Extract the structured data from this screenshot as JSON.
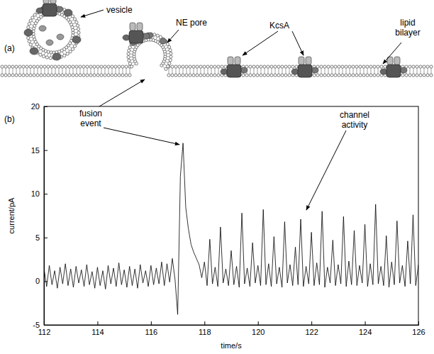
{
  "chart_data": {
    "type": "line",
    "title": "(b)",
    "x_label": "time/s",
    "y_label": "current/pA",
    "color": "#000000",
    "grid": false,
    "xlim": [
      112,
      126
    ],
    "ylim": [
      -5,
      20
    ],
    "xticks": [
      112,
      114,
      116,
      118,
      120,
      122,
      124,
      126
    ],
    "yticks": [
      -5,
      0,
      5,
      10,
      15,
      20
    ],
    "annotations": [
      "fusion event",
      "channel activity"
    ],
    "x": [
      112,
      112.1,
      112.2,
      112.3,
      112.4,
      112.5,
      112.6,
      112.7,
      112.8,
      112.9,
      113,
      113.1,
      113.2,
      113.3,
      113.4,
      113.5,
      113.6,
      113.7,
      113.8,
      113.9,
      114,
      114.1,
      114.2,
      114.3,
      114.4,
      114.5,
      114.6,
      114.7,
      114.8,
      114.9,
      115,
      115.1,
      115.2,
      115.3,
      115.4,
      115.5,
      115.6,
      115.7,
      115.8,
      115.9,
      116,
      116.1,
      116.2,
      116.3,
      116.4,
      116.5,
      116.6,
      116.7,
      116.8,
      116.9,
      117,
      117.1,
      117.2,
      117.3,
      117.4,
      117.5,
      117.6,
      117.7,
      117.8,
      117.9,
      118,
      118.1,
      118.2,
      118.3,
      118.4,
      118.5,
      118.6,
      118.7,
      118.8,
      118.9,
      119,
      119.1,
      119.2,
      119.3,
      119.4,
      119.5,
      119.6,
      119.7,
      119.8,
      119.9,
      120,
      120.1,
      120.2,
      120.3,
      120.4,
      120.5,
      120.6,
      120.7,
      120.8,
      120.9,
      121,
      121.1,
      121.2,
      121.3,
      121.4,
      121.5,
      121.6,
      121.7,
      121.8,
      121.9,
      122,
      122.1,
      122.2,
      122.3,
      122.4,
      122.5,
      122.6,
      122.7,
      122.8,
      122.9,
      123,
      123.1,
      123.2,
      123.3,
      123.4,
      123.5,
      123.6,
      123.7,
      123.8,
      123.9,
      124,
      124.1,
      124.2,
      124.3,
      124.4,
      124.5,
      124.6,
      124.7,
      124.8,
      124.9,
      125,
      125.1,
      125.2,
      125.3,
      125.4,
      125.5,
      125.6,
      125.7,
      125.8,
      125.9,
      126
    ],
    "values": [
      1.5,
      -0.6,
      1.8,
      -0.4,
      1.2,
      -0.8,
      1.6,
      -0.3,
      2.0,
      -0.5,
      1.4,
      -0.7,
      1.7,
      -0.2,
      1.3,
      -0.6,
      1.9,
      -0.4,
      1.1,
      -0.8,
      1.6,
      -0.5,
      1.2,
      -0.9,
      1.8,
      -0.3,
      1.5,
      -0.6,
      2.1,
      -0.4,
      1.3,
      -0.7,
      1.7,
      -0.5,
      1.4,
      -0.8,
      1.9,
      -0.2,
      1.2,
      -0.6,
      1.8,
      -0.4,
      1.5,
      -0.3,
      2.2,
      -0.5,
      2.0,
      -0.1,
      2.6,
      0.2,
      -3.8,
      12.0,
      15.8,
      8.5,
      6.0,
      4.2,
      3.3,
      2.6,
      1.9,
      0.4,
      2.2,
      -0.5,
      4.8,
      -0.3,
      1.6,
      -0.6,
      6.2,
      -0.2,
      1.4,
      -0.5,
      3.5,
      -0.4,
      1.7,
      -0.7,
      7.8,
      -0.3,
      1.5,
      -0.6,
      4.4,
      -0.2,
      1.8,
      -0.5,
      8.2,
      -0.4,
      2.0,
      -0.6,
      5.1,
      -0.3,
      1.6,
      -0.7,
      6.8,
      -0.2,
      1.9,
      -0.5,
      3.9,
      -0.4,
      7.1,
      -0.6,
      1.7,
      -0.3,
      5.6,
      -0.5,
      2.1,
      -0.4,
      8.0,
      -0.7,
      1.6,
      -0.2,
      4.7,
      -0.5,
      1.9,
      -0.3,
      7.4,
      -0.6,
      2.3,
      -0.4,
      5.8,
      -0.5,
      1.8,
      -0.2,
      6.5,
      -0.6,
      2.0,
      -0.4,
      8.8,
      -0.3,
      1.7,
      -0.5,
      5.2,
      -0.7,
      2.2,
      -0.4,
      6.9,
      -0.2,
      1.8,
      -0.6,
      4.6,
      -0.3,
      7.6,
      -0.5,
      1.9
    ]
  },
  "diagram": {
    "panel": "(a)",
    "labels": [
      "vesicle",
      "NE pore",
      "KcsA",
      "lipid bilayer"
    ]
  }
}
